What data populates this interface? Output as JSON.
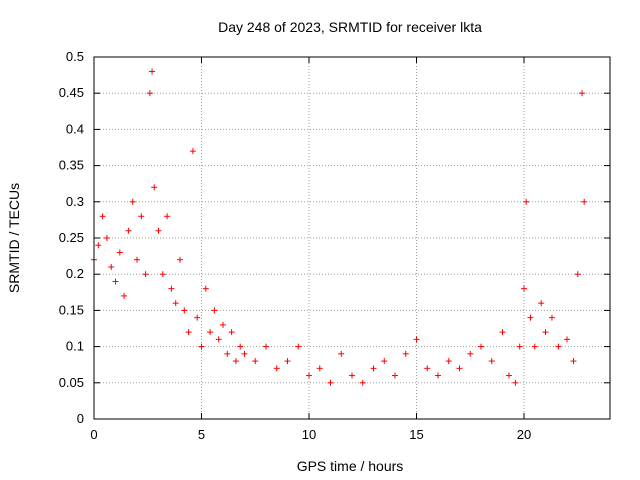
{
  "chart_data": {
    "type": "scatter",
    "title": "Day 248 of 2023, SRMTID for receiver lkta",
    "xlabel": "GPS time / hours",
    "ylabel": "SRMTID / TECUs",
    "xlim": [
      0,
      24
    ],
    "ylim": [
      0,
      0.5
    ],
    "xticks": [
      0,
      5,
      10,
      15,
      20
    ],
    "xtick_labels": [
      "0",
      "5",
      "10",
      "15",
      "20"
    ],
    "yticks": [
      0,
      0.05,
      0.1,
      0.15,
      0.2,
      0.25,
      0.3,
      0.35,
      0.4,
      0.45,
      0.5
    ],
    "ytick_labels": [
      "0",
      "0.05",
      "0.1",
      "0.15",
      "0.2",
      "0.25",
      "0.3",
      "0.35",
      "0.4",
      "0.45",
      "0.5"
    ],
    "grid": true,
    "marker": "+",
    "color": "#ff0000",
    "series": [
      {
        "name": "SRMTID",
        "x": [
          0.0,
          0.2,
          0.4,
          0.6,
          0.8,
          1.0,
          1.2,
          1.4,
          1.6,
          1.8,
          2.0,
          2.2,
          2.4,
          2.6,
          2.7,
          2.8,
          3.0,
          3.2,
          3.4,
          3.6,
          3.8,
          4.0,
          4.2,
          4.4,
          4.6,
          4.8,
          5.0,
          5.2,
          5.4,
          5.6,
          5.8,
          6.0,
          6.2,
          6.4,
          6.6,
          6.8,
          7.0,
          7.5,
          8.0,
          8.5,
          9.0,
          9.5,
          10.0,
          10.5,
          11.0,
          11.5,
          12.0,
          12.5,
          13.0,
          13.5,
          14.0,
          14.5,
          15.0,
          15.5,
          16.0,
          16.5,
          17.0,
          17.5,
          18.0,
          18.5,
          19.0,
          19.3,
          19.6,
          19.8,
          20.0,
          20.1,
          20.3,
          20.5,
          20.8,
          21.0,
          21.3,
          21.6,
          22.0,
          22.3,
          22.5,
          22.7,
          22.8
        ],
        "y": [
          0.22,
          0.24,
          0.28,
          0.25,
          0.21,
          0.19,
          0.23,
          0.17,
          0.26,
          0.3,
          0.22,
          0.28,
          0.2,
          0.45,
          0.48,
          0.32,
          0.26,
          0.2,
          0.28,
          0.18,
          0.16,
          0.22,
          0.15,
          0.12,
          0.37,
          0.14,
          0.1,
          0.18,
          0.12,
          0.15,
          0.11,
          0.13,
          0.09,
          0.12,
          0.08,
          0.1,
          0.09,
          0.08,
          0.1,
          0.07,
          0.08,
          0.1,
          0.06,
          0.07,
          0.05,
          0.09,
          0.06,
          0.05,
          0.07,
          0.08,
          0.06,
          0.09,
          0.11,
          0.07,
          0.06,
          0.08,
          0.07,
          0.09,
          0.1,
          0.08,
          0.12,
          0.06,
          0.05,
          0.1,
          0.18,
          0.3,
          0.14,
          0.1,
          0.16,
          0.12,
          0.14,
          0.1,
          0.11,
          0.08,
          0.2,
          0.45,
          0.3
        ]
      }
    ]
  }
}
